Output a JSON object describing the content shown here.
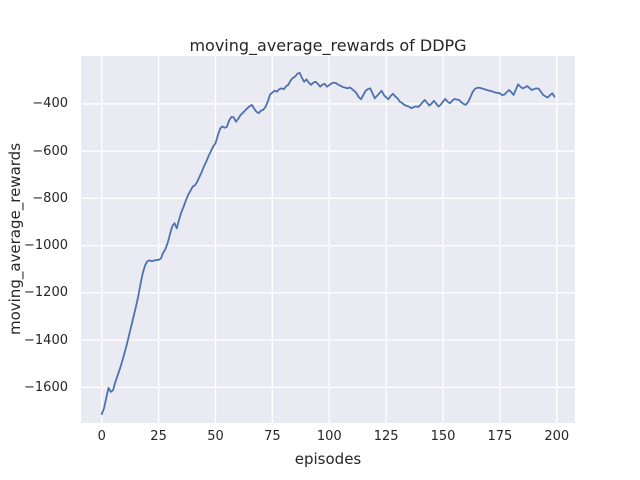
{
  "figure": {
    "background": "#FFFFFF"
  },
  "chart_data": {
    "type": "line",
    "title": "moving_average_rewards of DDPG",
    "xlabel": "episodes",
    "ylabel": "moving_average_rewards",
    "grid": true,
    "legend": "none",
    "plot_bg": "#EAEAF2",
    "grid_color": "#FFFFFF",
    "grid_width": 1.3,
    "text_color": "#262626",
    "xlim": [
      -9.1,
      208.0
    ],
    "ylim": [
      -1751,
      -197
    ],
    "x_ticks": [
      0,
      25,
      50,
      75,
      100,
      125,
      150,
      175,
      200
    ],
    "x_tick_labels": [
      "0",
      "25",
      "50",
      "75",
      "100",
      "125",
      "150",
      "175",
      "200"
    ],
    "y_ticks": [
      -400,
      -600,
      -800,
      -1000,
      -1200,
      -1400,
      -1600
    ],
    "y_tick_labels": [
      "−400",
      "−600",
      "−800",
      "−1000",
      "−1200",
      "−1400",
      "−1600"
    ],
    "series": [
      {
        "name": "DDPG moving average reward",
        "color": "#4C72B0",
        "line_width": 1.8,
        "x": {
          "start": 0,
          "step": 1
        },
        "y": [
          -1713,
          -1690,
          -1645,
          -1602,
          -1619,
          -1612,
          -1577,
          -1549,
          -1521,
          -1490,
          -1455,
          -1420,
          -1380,
          -1340,
          -1300,
          -1260,
          -1217,
          -1165,
          -1118,
          -1085,
          -1067,
          -1062,
          -1066,
          -1063,
          -1061,
          -1060,
          -1055,
          -1030,
          -1015,
          -988,
          -952,
          -918,
          -905,
          -927,
          -890,
          -858,
          -835,
          -808,
          -785,
          -768,
          -750,
          -744,
          -729,
          -708,
          -687,
          -663,
          -643,
          -620,
          -600,
          -580,
          -567,
          -535,
          -505,
          -495,
          -501,
          -497,
          -470,
          -455,
          -457,
          -475,
          -463,
          -447,
          -438,
          -428,
          -418,
          -410,
          -404,
          -420,
          -433,
          -439,
          -428,
          -425,
          -412,
          -390,
          -360,
          -352,
          -344,
          -348,
          -338,
          -334,
          -338,
          -325,
          -319,
          -301,
          -290,
          -284,
          -272,
          -268,
          -290,
          -306,
          -296,
          -310,
          -319,
          -310,
          -306,
          -315,
          -327,
          -318,
          -315,
          -327,
          -320,
          -313,
          -310,
          -312,
          -319,
          -323,
          -329,
          -331,
          -334,
          -330,
          -337,
          -345,
          -355,
          -372,
          -380,
          -362,
          -344,
          -337,
          -334,
          -355,
          -376,
          -366,
          -355,
          -344,
          -362,
          -372,
          -380,
          -366,
          -357,
          -368,
          -376,
          -390,
          -396,
          -404,
          -408,
          -411,
          -418,
          -414,
          -410,
          -413,
          -405,
          -393,
          -383,
          -395,
          -407,
          -398,
          -387,
          -399,
          -411,
          -403,
          -390,
          -379,
          -390,
          -397,
          -387,
          -379,
          -381,
          -383,
          -392,
          -400,
          -404,
          -392,
          -372,
          -350,
          -336,
          -332,
          -331,
          -334,
          -337,
          -340,
          -343,
          -345,
          -348,
          -352,
          -353,
          -355,
          -363,
          -360,
          -350,
          -341,
          -350,
          -362,
          -340,
          -317,
          -327,
          -334,
          -330,
          -324,
          -333,
          -341,
          -337,
          -334,
          -335,
          -348,
          -362,
          -368,
          -373,
          -363,
          -355,
          -369
        ]
      }
    ]
  }
}
